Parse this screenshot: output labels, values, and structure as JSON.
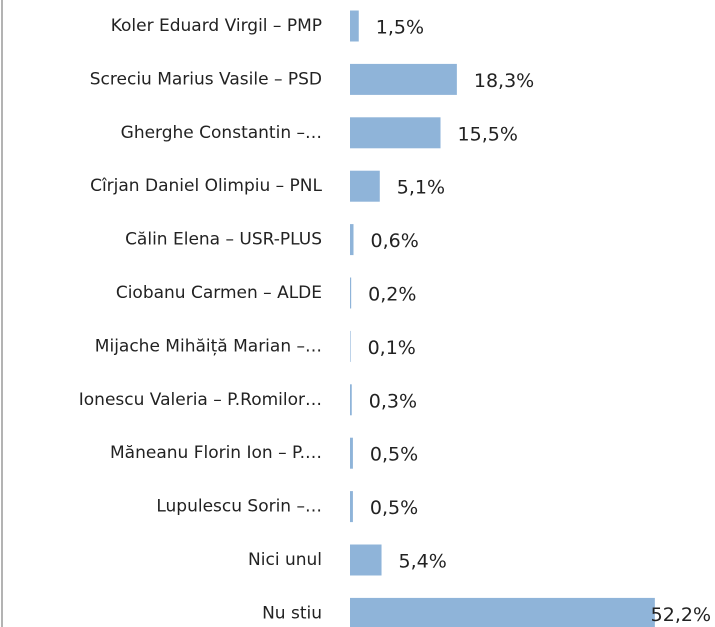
{
  "chart_data": {
    "type": "barh",
    "categories": [
      "Koler Eduard Virgil – PMP",
      "Screciu Marius Vasile – PSD",
      "Gherghe Constantin –…",
      "Cîrjan Daniel Olimpiu – PNL",
      "Călin Elena – USR-PLUS",
      "Ciobanu Carmen – ALDE",
      "Mijache Mihăiță Marian –…",
      "Ionescu Valeria – P.Romilor…",
      "Măneanu Florin Ion – P.…",
      "Lupulescu Sorin –…",
      "Nici unul",
      "Nu stiu"
    ],
    "values": [
      1.5,
      18.3,
      15.5,
      5.1,
      0.6,
      0.2,
      0.1,
      0.3,
      0.5,
      0.5,
      5.4,
      52.2
    ],
    "value_labels": [
      "1,5%",
      "18,3%",
      "15,5%",
      "5,1%",
      "0,6%",
      "0,2%",
      "0,1%",
      "0,3%",
      "0,5%",
      "0,5%",
      "5,4%",
      "52,2%"
    ],
    "color": "#8fb4d9"
  }
}
